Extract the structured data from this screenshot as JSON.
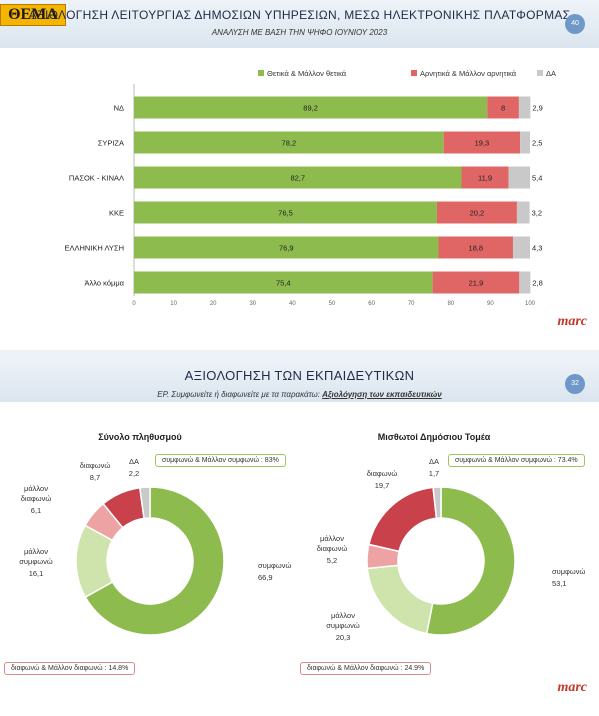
{
  "top": {
    "logo": "ΘΕΜΑ",
    "title": "ΑΞΙΟΛΟΓΗΣΗ ΛΕΙΤΟΥΡΓΙΑΣ ΔΗΜΟΣΙΩΝ ΥΠΗΡΕΣΙΩΝ, ΜΕΣΩ ΗΛΕΚΤΡΟΝΙΚΗΣ ΠΛΑΤΦΟΡΜΑΣ",
    "subtitle": "ΑΝΑΛΥΣΗ ΜΕ ΒΑΣΗ ΤΗΝ ΨΗΦΟ ΙΟΥΝΙΟΥ 2023",
    "page_number": "40",
    "brand": "marc"
  },
  "bottom": {
    "title": "ΑΞΙΟΛΟΓΗΣΗ ΤΩΝ ΕΚΠΑΙΔΕΥΤΙΚΩΝ",
    "question_prefix": "ΕΡ. Συμφωνείτε ή διαφωνείτε με τα παρακάτω:",
    "question_topic": "Αξιολόγηση των εκπαιδευτικών",
    "page_number": "32",
    "brand": "marc"
  },
  "colors": {
    "positive": "#8dbb4d",
    "negative": "#e06666",
    "dk": "#c9c9c9",
    "agree": "#8dbb4d",
    "rather_agree": "#cfe3ad",
    "rather_disagree": "#eda3a3",
    "disagree": "#c9414b",
    "dk_donut": "#c9c9c9"
  },
  "chart_data": [
    {
      "type": "bar",
      "orientation": "horizontal",
      "stacked": true,
      "categories": [
        "ΝΔ",
        "ΣΥΡΙΖΑ",
        "ΠΑΣΟΚ - ΚΙΝΑΛ",
        "ΚΚΕ",
        "ΕΛΛΗΝΙΚΗ ΛΥΣΗ",
        "Άλλο κόμμα"
      ],
      "series": [
        {
          "name": "Θετικά & Μάλλον θετικά",
          "values": [
            89.2,
            78.2,
            82.7,
            76.5,
            76.9,
            75.4
          ]
        },
        {
          "name": "Αρνητικά & Μάλλον αρνητικά",
          "values": [
            8,
            19.3,
            11.9,
            20.2,
            18.8,
            21.9
          ]
        },
        {
          "name": "ΔΑ",
          "values": [
            2.9,
            2.5,
            5.4,
            3.2,
            4.3,
            2.8
          ]
        }
      ],
      "xlim": [
        0,
        100
      ],
      "xticks": [
        "0",
        "10",
        "20",
        "30",
        "40",
        "50",
        "60",
        "70",
        "80",
        "90",
        "100"
      ],
      "legend": "top-right",
      "grid": false
    },
    {
      "type": "pie",
      "donut": true,
      "title": "Σύνολο πληθυσμού",
      "labels": [
        "συμφωνώ",
        "μάλλον συμφωνώ",
        "μάλλον διαφωνώ",
        "διαφωνώ",
        "ΔΑ"
      ],
      "values": [
        66.9,
        16.1,
        6.1,
        8.7,
        2.2
      ],
      "value_labels": [
        "66,9",
        "16,1",
        "6,1",
        "8,7",
        "2,2"
      ],
      "agree_summary": "συμφωνώ & Μάλλον συμφωνώ : 83%",
      "disagree_summary": "διαφωνώ & Μάλλον διαφωνώ : 14.8%"
    },
    {
      "type": "pie",
      "donut": true,
      "title": "Μισθωτοί Δημόσιου Τομέα",
      "labels": [
        "συμφωνώ",
        "μάλλον συμφωνώ",
        "μάλλον διαφωνώ",
        "διαφωνώ",
        "ΔΑ"
      ],
      "values": [
        53.1,
        20.3,
        5.2,
        19.7,
        1.7
      ],
      "value_labels": [
        "53,1",
        "20,3",
        "5,2",
        "19,7",
        "1,7"
      ],
      "agree_summary": "συμφωνώ & Μάλλον συμφωνώ : 73.4%",
      "disagree_summary": "διαφωνώ & Μάλλον διαφωνώ : 24.9%"
    }
  ]
}
